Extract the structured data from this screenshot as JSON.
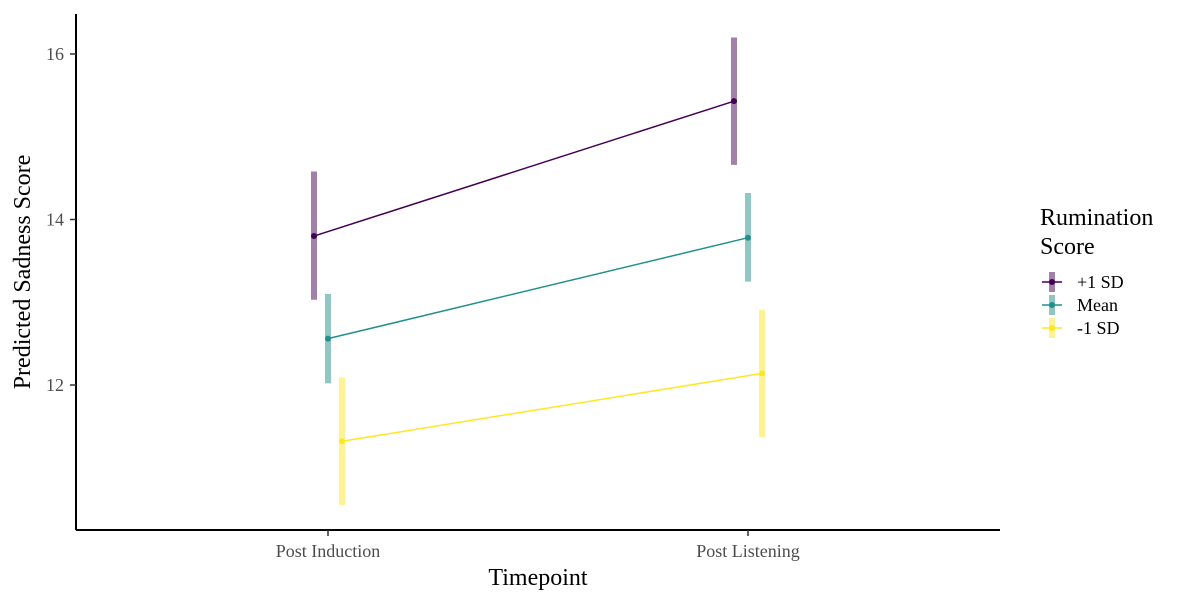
{
  "chart_data": {
    "type": "line",
    "xlabel": "Timepoint",
    "ylabel": "Predicted Sadness Score",
    "categories": [
      "Post Induction",
      "Post Listening"
    ],
    "yticks": [
      12,
      14,
      16
    ],
    "ylim": [
      10.3,
      16.5
    ],
    "legend": {
      "title_lines": [
        "Rumination",
        "Score"
      ],
      "position": "right"
    },
    "series": [
      {
        "name": "+1 SD",
        "color": "#440154",
        "values": [
          13.8,
          15.43
        ],
        "ci_low": [
          13.03,
          14.66
        ],
        "ci_high": [
          14.58,
          16.2
        ]
      },
      {
        "name": "Mean",
        "color": "#21908C",
        "values": [
          12.56,
          13.78
        ],
        "ci_low": [
          12.02,
          13.25
        ],
        "ci_high": [
          13.1,
          14.32
        ]
      },
      {
        "name": "-1 SD",
        "color": "#FDE725",
        "values": [
          11.32,
          12.14
        ],
        "ci_low": [
          10.55,
          11.37
        ],
        "ci_high": [
          12.09,
          12.91
        ]
      }
    ]
  }
}
